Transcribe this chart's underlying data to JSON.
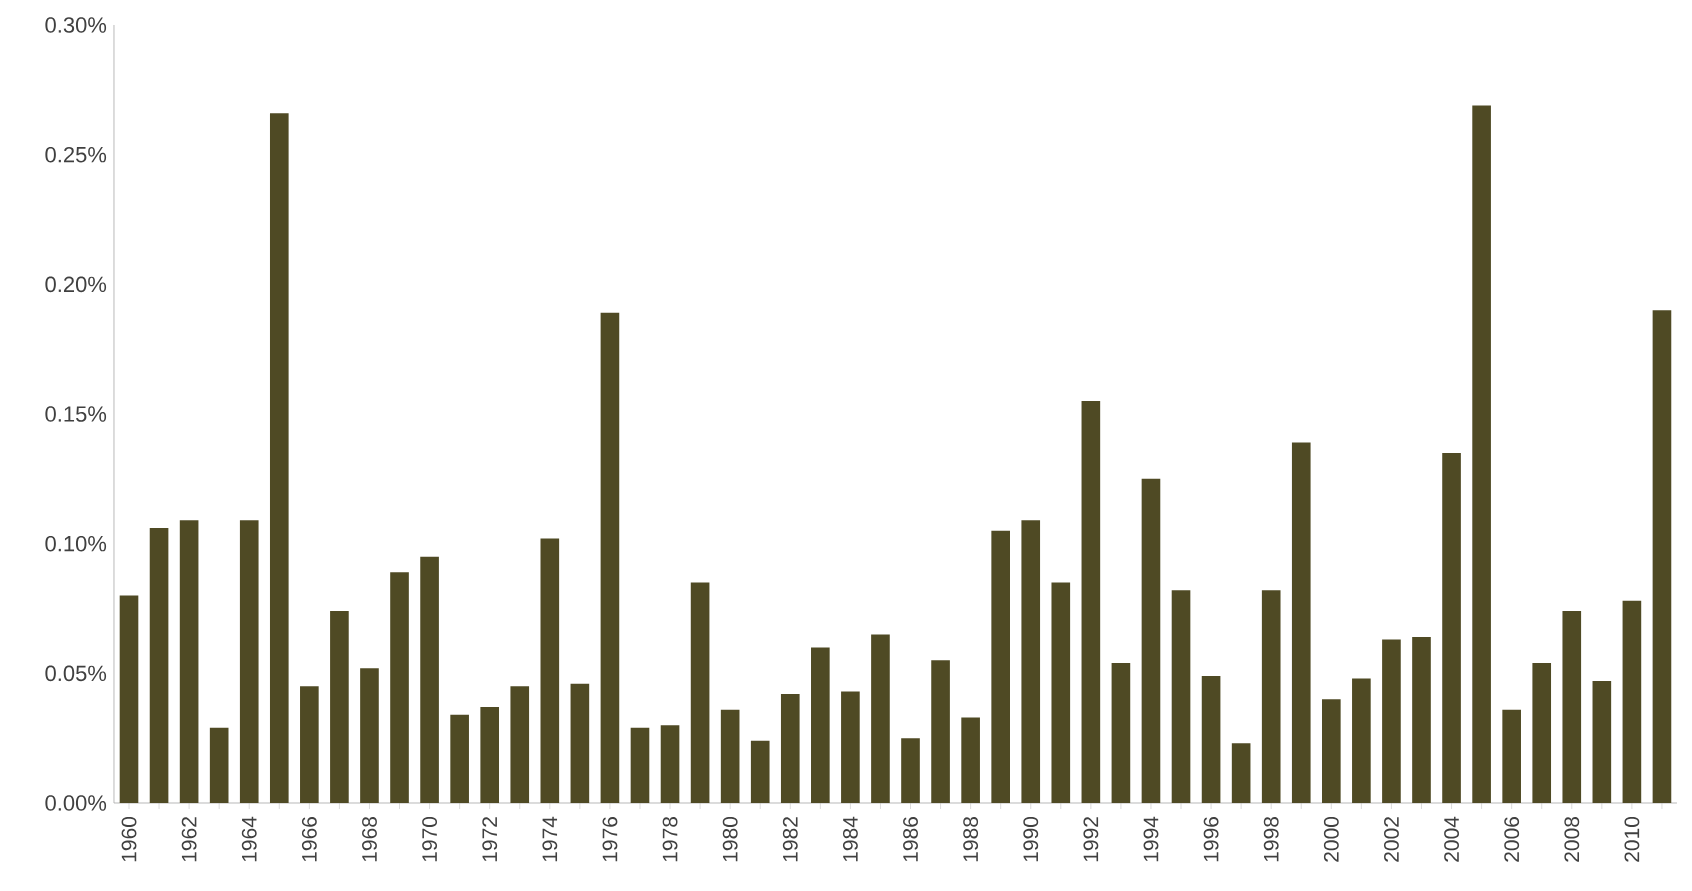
{
  "chart_data": {
    "type": "bar",
    "categories": [
      "1960",
      null,
      "1962",
      null,
      "1964",
      null,
      "1966",
      null,
      "1968",
      null,
      "1970",
      null,
      "1972",
      null,
      "1974",
      null,
      "1976",
      null,
      "1978",
      null,
      "1980",
      null,
      "1982",
      null,
      "1984",
      null,
      "1986",
      null,
      "1988",
      null,
      "1990",
      null,
      "1992",
      null,
      "1994",
      null,
      "1996",
      null,
      "1998",
      null,
      "2000",
      null,
      "2002",
      null,
      "2004",
      null,
      "2006",
      null,
      "2008",
      null,
      "2010",
      null
    ],
    "values": [
      0.08,
      0.106,
      0.109,
      0.029,
      0.109,
      0.266,
      0.045,
      0.074,
      0.052,
      0.089,
      0.095,
      0.034,
      0.037,
      0.045,
      0.102,
      0.046,
      0.189,
      0.029,
      0.03,
      0.085,
      0.036,
      0.024,
      0.042,
      0.06,
      0.043,
      0.065,
      0.025,
      0.055,
      0.033,
      0.105,
      0.109,
      0.085,
      0.155,
      0.054,
      0.125,
      0.082,
      0.049,
      0.023,
      0.082,
      0.139,
      0.04,
      0.048,
      0.063,
      0.064,
      0.135,
      0.269,
      0.036,
      0.054,
      0.074,
      0.047,
      0.078,
      0.19
    ],
    "color": "#4f4a24",
    "ylim": [
      0,
      0.3
    ],
    "yticks": [
      {
        "value": 0,
        "label": "0.00%"
      },
      {
        "value": 0.05,
        "label": "0.05%"
      },
      {
        "value": 0.1,
        "label": "0.10%"
      },
      {
        "value": 0.15,
        "label": "0.15%"
      },
      {
        "value": 0.2,
        "label": "0.20%"
      },
      {
        "value": 0.25,
        "label": "0.25%"
      },
      {
        "value": 0.3,
        "label": "0.30%"
      }
    ]
  }
}
